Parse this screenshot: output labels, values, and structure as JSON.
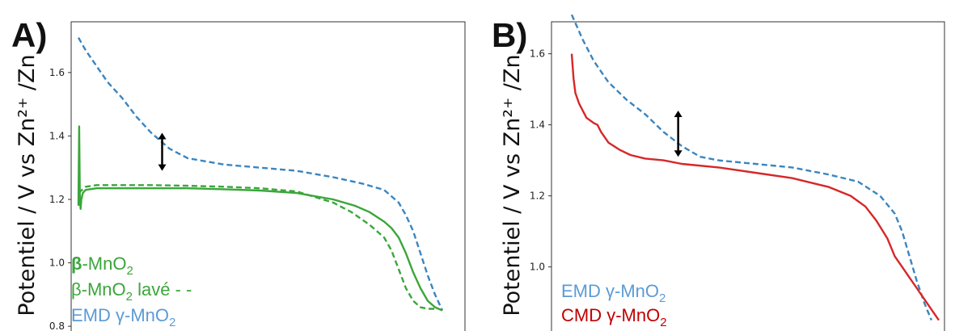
{
  "chart_data": [
    {
      "panel": "A)",
      "type": "line",
      "ylabel": "Potentiel / V vs Zn²⁺ /Zn",
      "ylim": [
        0.78,
        1.76
      ],
      "xlim": [
        0,
        1
      ],
      "yticks": [
        0.8,
        1.0,
        1.2,
        1.4,
        1.6
      ],
      "tick_labels": [
        "0.8",
        "1.0",
        "1.2",
        "1.4",
        "1.6"
      ],
      "legend": [
        {
          "text": "β-MnO2",
          "prefix": "β",
          "main": "-MnO",
          "sub": "2",
          "suffix": "",
          "color": "#3aa63a",
          "bold_prefix": true
        },
        {
          "text": "β-MnO2 lavé - -",
          "prefix": "β",
          "main": "-MnO",
          "sub": "2",
          "suffix": " lavé - -",
          "color": "#3aa63a",
          "bold_prefix": false
        },
        {
          "text": "EMD γ-MnO2",
          "prefix": "",
          "main": "EMD γ-MnO",
          "sub": "2",
          "suffix": "",
          "color": "#5b9bd5",
          "bold_prefix": false
        }
      ],
      "series": [
        {
          "style": "dashed",
          "color": "#3a85c0",
          "x": [
            0.0,
            0.02,
            0.05,
            0.08,
            0.12,
            0.16,
            0.2,
            0.25,
            0.3,
            0.35,
            0.4,
            0.5,
            0.6,
            0.7,
            0.78,
            0.84,
            0.88,
            0.9,
            0.92,
            0.94,
            0.96,
            0.98,
            1.0
          ],
          "y": [
            1.71,
            1.67,
            1.62,
            1.57,
            1.52,
            1.46,
            1.41,
            1.36,
            1.33,
            1.32,
            1.31,
            1.3,
            1.29,
            1.27,
            1.25,
            1.23,
            1.19,
            1.15,
            1.1,
            1.03,
            0.96,
            0.9,
            0.85
          ]
        },
        {
          "style": "solid",
          "color": "#3aa63a",
          "x": [
            0.0,
            0.002,
            0.004,
            0.006,
            0.008,
            0.012,
            0.02,
            0.05,
            0.1,
            0.2,
            0.3,
            0.4,
            0.5,
            0.6,
            0.7,
            0.76,
            0.8,
            0.84,
            0.86,
            0.88,
            0.9,
            0.92,
            0.94,
            0.96,
            0.98,
            1.0
          ],
          "y": [
            1.18,
            1.43,
            1.2,
            1.17,
            1.2,
            1.22,
            1.23,
            1.235,
            1.235,
            1.235,
            1.235,
            1.232,
            1.228,
            1.22,
            1.2,
            1.18,
            1.16,
            1.13,
            1.11,
            1.08,
            1.03,
            0.97,
            0.92,
            0.88,
            0.86,
            0.85
          ]
        },
        {
          "style": "dashed",
          "color": "#3aa63a",
          "x": [
            0.0,
            0.01,
            0.02,
            0.05,
            0.1,
            0.2,
            0.3,
            0.4,
            0.5,
            0.6,
            0.7,
            0.75,
            0.8,
            0.84,
            0.86,
            0.88,
            0.9,
            0.92,
            0.94,
            0.96,
            0.98
          ],
          "y": [
            1.22,
            1.23,
            1.24,
            1.245,
            1.245,
            1.245,
            1.243,
            1.24,
            1.235,
            1.225,
            1.19,
            1.16,
            1.12,
            1.08,
            1.04,
            0.98,
            0.92,
            0.88,
            0.86,
            0.855,
            0.855
          ]
        }
      ],
      "annotation_arrow": {
        "x": 0.23,
        "y_top": 1.41,
        "y_bottom": 1.29
      }
    },
    {
      "panel": "B)",
      "type": "line",
      "ylabel": "Potentiel / V vs Zn²⁺ /Zn",
      "ylim": [
        0.815,
        1.69
      ],
      "xlim": [
        0,
        1
      ],
      "yticks": [
        1.0,
        1.2,
        1.4,
        1.6
      ],
      "tick_labels": [
        "1.0",
        "1.2",
        "1.4",
        "1.6"
      ],
      "legend": [
        {
          "text": "EMD γ-MnO2",
          "prefix": "",
          "main": "EMD γ-MnO",
          "sub": "2",
          "suffix": "",
          "color": "#5b9bd5",
          "bold_prefix": false
        },
        {
          "text": "CMD γ-MnO2",
          "prefix": "",
          "main": "CMD γ-MnO",
          "sub": "2",
          "suffix": "",
          "color": "#c00000",
          "bold_prefix": false
        }
      ],
      "series": [
        {
          "style": "dashed",
          "color": "#3a85c0",
          "x": [
            0.0,
            0.03,
            0.06,
            0.1,
            0.15,
            0.2,
            0.25,
            0.3,
            0.35,
            0.4,
            0.5,
            0.6,
            0.7,
            0.78,
            0.84,
            0.88,
            0.9,
            0.92,
            0.94,
            0.96,
            0.98
          ],
          "y": [
            1.71,
            1.64,
            1.58,
            1.52,
            1.47,
            1.43,
            1.38,
            1.34,
            1.31,
            1.3,
            1.29,
            1.28,
            1.26,
            1.24,
            1.2,
            1.15,
            1.1,
            1.03,
            0.96,
            0.9,
            0.85
          ]
        },
        {
          "style": "solid",
          "color": "#d62728",
          "x": [
            0.0,
            0.005,
            0.01,
            0.02,
            0.04,
            0.06,
            0.07,
            0.08,
            0.1,
            0.13,
            0.16,
            0.2,
            0.25,
            0.3,
            0.4,
            0.5,
            0.6,
            0.7,
            0.76,
            0.8,
            0.83,
            0.86,
            0.88,
            0.9,
            0.92,
            0.94,
            0.96,
            0.98,
            1.0
          ],
          "y": [
            1.6,
            1.53,
            1.49,
            1.46,
            1.42,
            1.405,
            1.4,
            1.38,
            1.35,
            1.33,
            1.315,
            1.305,
            1.3,
            1.29,
            1.28,
            1.265,
            1.25,
            1.225,
            1.2,
            1.17,
            1.13,
            1.08,
            1.03,
            1.0,
            0.97,
            0.94,
            0.91,
            0.88,
            0.85
          ]
        }
      ],
      "annotation_arrow": {
        "x": 0.29,
        "y_top": 1.44,
        "y_bottom": 1.31
      }
    }
  ]
}
